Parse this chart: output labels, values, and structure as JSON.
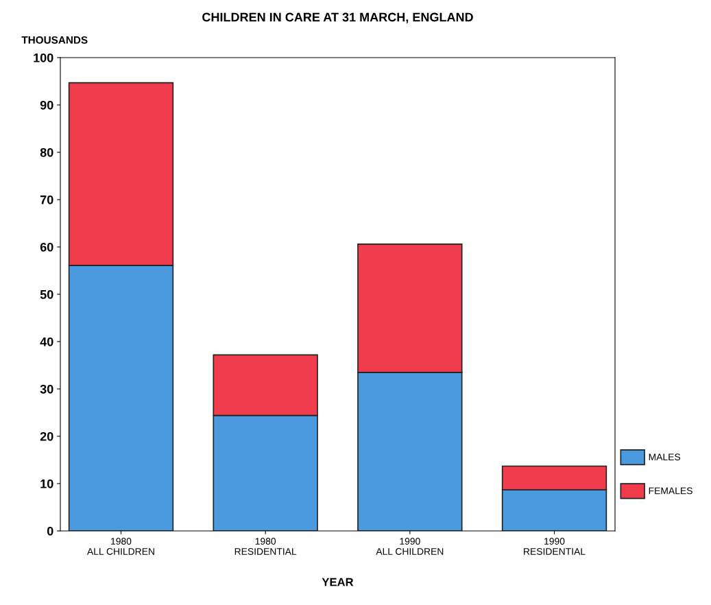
{
  "chart_data": {
    "type": "bar",
    "title": "CHILDREN IN CARE AT 31 MARCH, ENGLAND",
    "ylabel": "THOUSANDS",
    "xlabel": "YEAR",
    "categories": [
      "1980\nALL CHILDREN",
      "1980\nRESIDENTIAL",
      "1990\nALL CHILDREN",
      "1990\nRESIDENTIAL"
    ],
    "stacked": true,
    "series": [
      {
        "name": "MALES",
        "color": "#4a9ae0",
        "values": [
          56.1,
          24.4,
          33.5,
          8.7
        ]
      },
      {
        "name": "FEMALES",
        "color": "#f03c4c",
        "values": [
          38.6,
          12.8,
          27.1,
          5.0
        ]
      }
    ],
    "ylim": [
      0,
      100
    ],
    "yticks": [
      0,
      10,
      20,
      30,
      40,
      50,
      60,
      70,
      80,
      90,
      100
    ],
    "grid": false,
    "legend": "right"
  }
}
